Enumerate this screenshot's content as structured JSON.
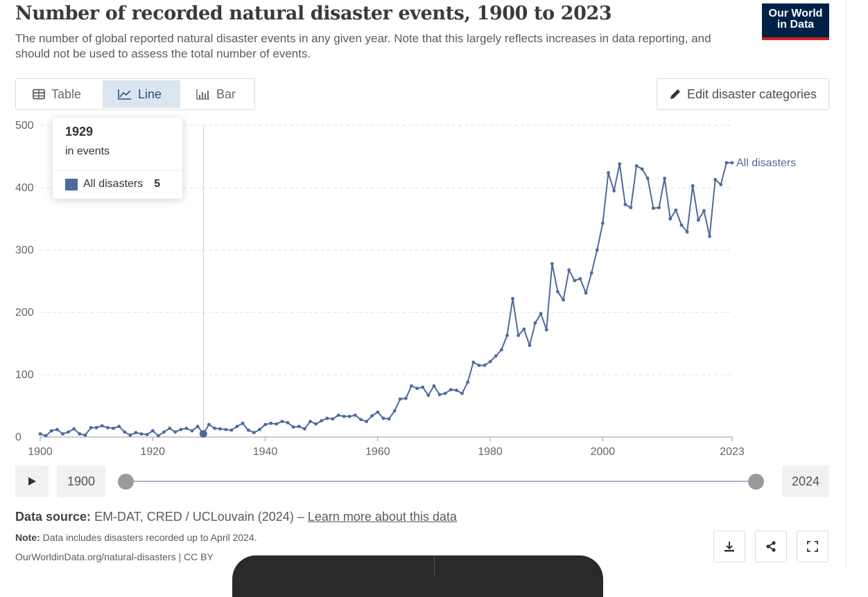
{
  "header": {
    "title": "Number of recorded natural disaster events, 1900 to 2023",
    "subtitle": "The number of global reported natural disaster events in any given year. Note that this largely reflects increases in data reporting, and should not be used to assess the total number of events.",
    "logo_line1": "Our World",
    "logo_line2": "in Data"
  },
  "tabs": [
    {
      "label": "Table",
      "icon": "table-icon",
      "active": false
    },
    {
      "label": "Line",
      "icon": "line-chart-icon",
      "active": true
    },
    {
      "label": "Bar",
      "icon": "bar-chart-icon",
      "active": false
    }
  ],
  "edit_button": {
    "label": "Edit disaster categories",
    "icon": "pencil-icon"
  },
  "tooltip": {
    "year": "1929",
    "unit": "in events",
    "series": "All disasters",
    "value": "5"
  },
  "timeline": {
    "start": "1900",
    "end": "2024",
    "play_icon": "play-icon"
  },
  "footer": {
    "source_label": "Data source:",
    "source_text": "EM-DAT, CRED / UCLouvain (2024) –",
    "source_link": "Learn more about this data",
    "note_label": "Note:",
    "note_text": "Data includes disasters recorded up to April 2024.",
    "url": "OurWorldinData.org/natural-disasters | CC BY"
  },
  "actions": [
    {
      "name": "download-button",
      "icon": "download-icon"
    },
    {
      "name": "share-button",
      "icon": "share-icon"
    },
    {
      "name": "fullscreen-button",
      "icon": "fullscreen-icon"
    }
  ],
  "colors": {
    "series": "#4c6a9c",
    "grid": "#dddddd",
    "accent": "#dbe5f0"
  },
  "chart_data": {
    "type": "line",
    "title": "Number of recorded natural disaster events, 1900 to 2023",
    "xlabel": "",
    "ylabel": "",
    "xlim": [
      1900,
      2023
    ],
    "ylim": [
      0,
      500
    ],
    "xticks": [
      "1900",
      "1920",
      "1940",
      "1960",
      "1980",
      "2000",
      "2023"
    ],
    "yticks": [
      "0",
      "100",
      "200",
      "300",
      "400",
      "500"
    ],
    "grid": true,
    "highlight_year": 1929,
    "series": [
      {
        "name": "All disasters",
        "years_start": 1900,
        "values": [
          5,
          2,
          10,
          12,
          5,
          8,
          13,
          5,
          3,
          15,
          15,
          18,
          15,
          14,
          17,
          8,
          3,
          7,
          5,
          4,
          10,
          2,
          8,
          14,
          8,
          12,
          14,
          10,
          17,
          5,
          20,
          14,
          13,
          12,
          11,
          17,
          22,
          11,
          7,
          12,
          20,
          22,
          21,
          25,
          23,
          16,
          17,
          13,
          25,
          21,
          26,
          30,
          29,
          35,
          33,
          33,
          35,
          28,
          25,
          34,
          40,
          30,
          29,
          42,
          61,
          62,
          82,
          78,
          80,
          67,
          82,
          68,
          70,
          76,
          75,
          70,
          88,
          120,
          115,
          115,
          121,
          130,
          140,
          163,
          222,
          163,
          173,
          147,
          183,
          198,
          172,
          278,
          233,
          220,
          268,
          251,
          254,
          231,
          263,
          300,
          343,
          424,
          395,
          438,
          373,
          368,
          435,
          430,
          415,
          367,
          368,
          415,
          350,
          364,
          340,
          329,
          403,
          348,
          363,
          322,
          413,
          405,
          440,
          440
        ]
      }
    ]
  }
}
